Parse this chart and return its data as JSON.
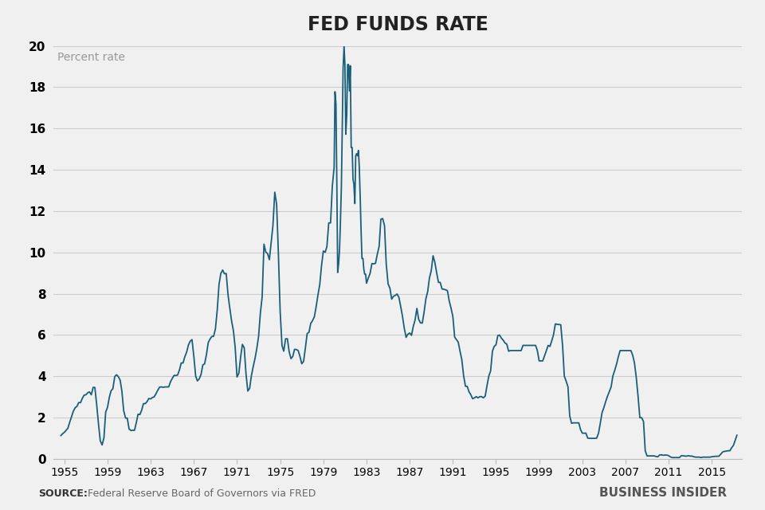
{
  "title": "FED FUNDS RATE",
  "ylabel": "Percent rate",
  "source_label": "SOURCE:",
  "source_text": "Federal Reserve Board of Governors via FRED",
  "watermark": "BUSINESS INSIDER",
  "line_color": "#1a5f7a",
  "background_color": "#f0f0f0",
  "plot_background": "#f0f0f0",
  "ylim": [
    0,
    20
  ],
  "yticks": [
    0,
    2,
    4,
    6,
    8,
    10,
    12,
    14,
    16,
    18,
    20
  ],
  "xlim": [
    1954.0,
    2017.8
  ],
  "xtick_labels": [
    "1955",
    "1959",
    "1963",
    "1967",
    "1971",
    "1975",
    "1979",
    "1983",
    "1987",
    "1991",
    "1995",
    "1999",
    "2003",
    "2007",
    "2011",
    "2015"
  ],
  "xtick_positions": [
    1955,
    1959,
    1963,
    1967,
    1971,
    1975,
    1979,
    1983,
    1987,
    1991,
    1995,
    1999,
    2003,
    2007,
    2011,
    2015
  ],
  "data": [
    [
      1954.67,
      1.13
    ],
    [
      1954.83,
      1.22
    ],
    [
      1955.0,
      1.29
    ],
    [
      1955.17,
      1.39
    ],
    [
      1955.33,
      1.49
    ],
    [
      1955.5,
      1.79
    ],
    [
      1955.67,
      2.05
    ],
    [
      1955.83,
      2.31
    ],
    [
      1956.0,
      2.48
    ],
    [
      1956.17,
      2.55
    ],
    [
      1956.33,
      2.73
    ],
    [
      1956.5,
      2.73
    ],
    [
      1956.67,
      2.94
    ],
    [
      1956.83,
      3.09
    ],
    [
      1957.0,
      3.11
    ],
    [
      1957.17,
      3.21
    ],
    [
      1957.33,
      3.25
    ],
    [
      1957.5,
      3.11
    ],
    [
      1957.67,
      3.47
    ],
    [
      1957.83,
      3.46
    ],
    [
      1958.0,
      2.61
    ],
    [
      1958.17,
      1.67
    ],
    [
      1958.33,
      0.88
    ],
    [
      1958.5,
      0.68
    ],
    [
      1958.67,
      1.03
    ],
    [
      1958.83,
      2.27
    ],
    [
      1959.0,
      2.5
    ],
    [
      1959.17,
      2.99
    ],
    [
      1959.33,
      3.3
    ],
    [
      1959.5,
      3.41
    ],
    [
      1959.67,
      3.99
    ],
    [
      1959.83,
      4.08
    ],
    [
      1960.0,
      3.99
    ],
    [
      1960.17,
      3.82
    ],
    [
      1960.33,
      3.29
    ],
    [
      1960.5,
      2.34
    ],
    [
      1960.67,
      1.98
    ],
    [
      1960.83,
      1.98
    ],
    [
      1961.0,
      1.45
    ],
    [
      1961.17,
      1.38
    ],
    [
      1961.33,
      1.39
    ],
    [
      1961.5,
      1.39
    ],
    [
      1961.67,
      1.76
    ],
    [
      1961.83,
      2.17
    ],
    [
      1962.0,
      2.15
    ],
    [
      1962.17,
      2.37
    ],
    [
      1962.33,
      2.68
    ],
    [
      1962.5,
      2.68
    ],
    [
      1962.67,
      2.78
    ],
    [
      1962.83,
      2.93
    ],
    [
      1963.0,
      2.91
    ],
    [
      1963.17,
      2.98
    ],
    [
      1963.33,
      3.01
    ],
    [
      1963.5,
      3.17
    ],
    [
      1963.67,
      3.34
    ],
    [
      1963.83,
      3.48
    ],
    [
      1964.0,
      3.49
    ],
    [
      1964.17,
      3.47
    ],
    [
      1964.33,
      3.49
    ],
    [
      1964.5,
      3.49
    ],
    [
      1964.67,
      3.49
    ],
    [
      1964.83,
      3.73
    ],
    [
      1965.0,
      3.9
    ],
    [
      1965.17,
      4.05
    ],
    [
      1965.33,
      4.04
    ],
    [
      1965.5,
      4.07
    ],
    [
      1965.67,
      4.32
    ],
    [
      1965.83,
      4.65
    ],
    [
      1966.0,
      4.65
    ],
    [
      1966.17,
      4.96
    ],
    [
      1966.33,
      5.17
    ],
    [
      1966.5,
      5.52
    ],
    [
      1966.67,
      5.71
    ],
    [
      1966.83,
      5.78
    ],
    [
      1967.0,
      4.97
    ],
    [
      1967.17,
      4.01
    ],
    [
      1967.33,
      3.78
    ],
    [
      1967.5,
      3.88
    ],
    [
      1967.67,
      4.1
    ],
    [
      1967.83,
      4.55
    ],
    [
      1968.0,
      4.61
    ],
    [
      1968.17,
      5.06
    ],
    [
      1968.33,
      5.63
    ],
    [
      1968.5,
      5.81
    ],
    [
      1968.67,
      5.93
    ],
    [
      1968.83,
      5.94
    ],
    [
      1969.0,
      6.3
    ],
    [
      1969.17,
      7.22
    ],
    [
      1969.33,
      8.44
    ],
    [
      1969.5,
      8.98
    ],
    [
      1969.67,
      9.15
    ],
    [
      1969.83,
      8.97
    ],
    [
      1970.0,
      8.98
    ],
    [
      1970.17,
      7.94
    ],
    [
      1970.33,
      7.31
    ],
    [
      1970.5,
      6.68
    ],
    [
      1970.67,
      6.2
    ],
    [
      1970.83,
      5.4
    ],
    [
      1971.0,
      3.97
    ],
    [
      1971.17,
      4.15
    ],
    [
      1971.33,
      4.91
    ],
    [
      1971.5,
      5.55
    ],
    [
      1971.67,
      5.38
    ],
    [
      1971.83,
      4.14
    ],
    [
      1972.0,
      3.29
    ],
    [
      1972.17,
      3.42
    ],
    [
      1972.33,
      4.02
    ],
    [
      1972.5,
      4.47
    ],
    [
      1972.67,
      4.87
    ],
    [
      1972.83,
      5.33
    ],
    [
      1973.0,
      5.94
    ],
    [
      1973.17,
      7.09
    ],
    [
      1973.33,
      7.84
    ],
    [
      1973.5,
      10.4
    ],
    [
      1973.67,
      10.01
    ],
    [
      1973.83,
      9.95
    ],
    [
      1974.0,
      9.65
    ],
    [
      1974.17,
      10.51
    ],
    [
      1974.33,
      11.31
    ],
    [
      1974.5,
      12.92
    ],
    [
      1974.67,
      12.34
    ],
    [
      1974.83,
      10.02
    ],
    [
      1975.0,
      7.13
    ],
    [
      1975.17,
      5.49
    ],
    [
      1975.33,
      5.22
    ],
    [
      1975.5,
      5.82
    ],
    [
      1975.67,
      5.82
    ],
    [
      1975.83,
      5.2
    ],
    [
      1976.0,
      4.86
    ],
    [
      1976.17,
      4.97
    ],
    [
      1976.33,
      5.31
    ],
    [
      1976.5,
      5.3
    ],
    [
      1976.67,
      5.25
    ],
    [
      1976.83,
      4.97
    ],
    [
      1977.0,
      4.61
    ],
    [
      1977.17,
      4.73
    ],
    [
      1977.33,
      5.35
    ],
    [
      1977.5,
      6.07
    ],
    [
      1977.67,
      6.14
    ],
    [
      1977.83,
      6.56
    ],
    [
      1978.0,
      6.7
    ],
    [
      1978.17,
      6.89
    ],
    [
      1978.33,
      7.36
    ],
    [
      1978.5,
      7.94
    ],
    [
      1978.67,
      8.45
    ],
    [
      1978.83,
      9.35
    ],
    [
      1979.0,
      10.07
    ],
    [
      1979.17,
      10.01
    ],
    [
      1979.33,
      10.28
    ],
    [
      1979.5,
      11.43
    ],
    [
      1979.67,
      11.43
    ],
    [
      1979.83,
      13.19
    ],
    [
      1980.0,
      14.13
    ],
    [
      1980.08,
      17.78
    ],
    [
      1980.17,
      17.19
    ],
    [
      1980.25,
      13.35
    ],
    [
      1980.33,
      9.03
    ],
    [
      1980.42,
      9.47
    ],
    [
      1980.5,
      10.14
    ],
    [
      1980.58,
      11.39
    ],
    [
      1980.67,
      13.15
    ],
    [
      1980.75,
      15.85
    ],
    [
      1980.83,
      18.9
    ],
    [
      1980.92,
      20.0
    ],
    [
      1981.0,
      19.08
    ],
    [
      1981.08,
      15.72
    ],
    [
      1981.17,
      16.68
    ],
    [
      1981.25,
      19.1
    ],
    [
      1981.33,
      19.1
    ],
    [
      1981.42,
      17.82
    ],
    [
      1981.5,
      19.04
    ],
    [
      1981.58,
      15.08
    ],
    [
      1981.67,
      15.08
    ],
    [
      1981.75,
      13.54
    ],
    [
      1981.83,
      13.31
    ],
    [
      1981.92,
      12.37
    ],
    [
      1982.0,
      14.68
    ],
    [
      1982.08,
      14.78
    ],
    [
      1982.17,
      14.68
    ],
    [
      1982.25,
      14.94
    ],
    [
      1982.33,
      14.15
    ],
    [
      1982.42,
      12.59
    ],
    [
      1982.5,
      11.01
    ],
    [
      1982.58,
      9.71
    ],
    [
      1982.67,
      9.71
    ],
    [
      1982.75,
      9.2
    ],
    [
      1982.83,
      8.95
    ],
    [
      1982.92,
      8.95
    ],
    [
      1983.0,
      8.51
    ],
    [
      1983.17,
      8.77
    ],
    [
      1983.33,
      8.98
    ],
    [
      1983.5,
      9.46
    ],
    [
      1983.67,
      9.45
    ],
    [
      1983.83,
      9.47
    ],
    [
      1984.0,
      9.91
    ],
    [
      1984.17,
      10.29
    ],
    [
      1984.33,
      11.61
    ],
    [
      1984.5,
      11.64
    ],
    [
      1984.67,
      11.29
    ],
    [
      1984.83,
      9.43
    ],
    [
      1985.0,
      8.48
    ],
    [
      1985.17,
      8.27
    ],
    [
      1985.33,
      7.74
    ],
    [
      1985.5,
      7.88
    ],
    [
      1985.67,
      7.92
    ],
    [
      1985.83,
      7.99
    ],
    [
      1986.0,
      7.83
    ],
    [
      1986.17,
      7.38
    ],
    [
      1986.33,
      6.92
    ],
    [
      1986.5,
      6.33
    ],
    [
      1986.67,
      5.89
    ],
    [
      1986.83,
      6.04
    ],
    [
      1987.0,
      6.1
    ],
    [
      1987.17,
      5.99
    ],
    [
      1987.33,
      6.41
    ],
    [
      1987.5,
      6.73
    ],
    [
      1987.67,
      7.29
    ],
    [
      1987.83,
      6.77
    ],
    [
      1988.0,
      6.59
    ],
    [
      1988.17,
      6.58
    ],
    [
      1988.33,
      7.09
    ],
    [
      1988.5,
      7.75
    ],
    [
      1988.67,
      8.11
    ],
    [
      1988.83,
      8.76
    ],
    [
      1989.0,
      9.12
    ],
    [
      1989.17,
      9.84
    ],
    [
      1989.33,
      9.53
    ],
    [
      1989.5,
      9.02
    ],
    [
      1989.67,
      8.55
    ],
    [
      1989.83,
      8.55
    ],
    [
      1990.0,
      8.23
    ],
    [
      1990.17,
      8.22
    ],
    [
      1990.33,
      8.19
    ],
    [
      1990.5,
      8.15
    ],
    [
      1990.67,
      7.64
    ],
    [
      1990.83,
      7.31
    ],
    [
      1991.0,
      6.91
    ],
    [
      1991.17,
      5.9
    ],
    [
      1991.33,
      5.78
    ],
    [
      1991.5,
      5.66
    ],
    [
      1991.67,
      5.21
    ],
    [
      1991.83,
      4.81
    ],
    [
      1992.0,
      4.03
    ],
    [
      1992.17,
      3.52
    ],
    [
      1992.33,
      3.52
    ],
    [
      1992.5,
      3.25
    ],
    [
      1992.67,
      3.11
    ],
    [
      1992.83,
      2.92
    ],
    [
      1993.0,
      2.96
    ],
    [
      1993.17,
      3.02
    ],
    [
      1993.33,
      2.96
    ],
    [
      1993.5,
      3.02
    ],
    [
      1993.67,
      3.02
    ],
    [
      1993.83,
      2.96
    ],
    [
      1994.0,
      3.05
    ],
    [
      1994.17,
      3.56
    ],
    [
      1994.33,
      4.01
    ],
    [
      1994.5,
      4.26
    ],
    [
      1994.67,
      5.22
    ],
    [
      1994.83,
      5.45
    ],
    [
      1995.0,
      5.53
    ],
    [
      1995.17,
      5.98
    ],
    [
      1995.33,
      6.0
    ],
    [
      1995.5,
      5.85
    ],
    [
      1995.67,
      5.75
    ],
    [
      1995.83,
      5.62
    ],
    [
      1996.0,
      5.56
    ],
    [
      1996.17,
      5.22
    ],
    [
      1996.33,
      5.25
    ],
    [
      1996.5,
      5.25
    ],
    [
      1996.67,
      5.25
    ],
    [
      1996.83,
      5.25
    ],
    [
      1997.0,
      5.25
    ],
    [
      1997.17,
      5.25
    ],
    [
      1997.33,
      5.25
    ],
    [
      1997.5,
      5.5
    ],
    [
      1997.67,
      5.5
    ],
    [
      1997.83,
      5.5
    ],
    [
      1998.0,
      5.5
    ],
    [
      1998.17,
      5.5
    ],
    [
      1998.33,
      5.5
    ],
    [
      1998.5,
      5.5
    ],
    [
      1998.67,
      5.5
    ],
    [
      1998.83,
      5.25
    ],
    [
      1999.0,
      4.75
    ],
    [
      1999.17,
      4.75
    ],
    [
      1999.33,
      4.75
    ],
    [
      1999.5,
      5.0
    ],
    [
      1999.67,
      5.25
    ],
    [
      1999.83,
      5.5
    ],
    [
      2000.0,
      5.45
    ],
    [
      2000.17,
      5.73
    ],
    [
      2000.33,
      6.02
    ],
    [
      2000.5,
      6.54
    ],
    [
      2000.67,
      6.52
    ],
    [
      2000.83,
      6.51
    ],
    [
      2001.0,
      6.5
    ],
    [
      2001.17,
      5.49
    ],
    [
      2001.33,
      4.01
    ],
    [
      2001.5,
      3.77
    ],
    [
      2001.67,
      3.49
    ],
    [
      2001.83,
      2.09
    ],
    [
      2002.0,
      1.73
    ],
    [
      2002.17,
      1.75
    ],
    [
      2002.33,
      1.75
    ],
    [
      2002.5,
      1.75
    ],
    [
      2002.67,
      1.75
    ],
    [
      2002.83,
      1.43
    ],
    [
      2003.0,
      1.25
    ],
    [
      2003.17,
      1.25
    ],
    [
      2003.33,
      1.25
    ],
    [
      2003.5,
      1.01
    ],
    [
      2003.67,
      1.0
    ],
    [
      2003.83,
      1.0
    ],
    [
      2004.0,
      1.0
    ],
    [
      2004.17,
      1.0
    ],
    [
      2004.33,
      1.01
    ],
    [
      2004.5,
      1.25
    ],
    [
      2004.67,
      1.75
    ],
    [
      2004.83,
      2.25
    ],
    [
      2005.0,
      2.5
    ],
    [
      2005.17,
      2.79
    ],
    [
      2005.33,
      3.04
    ],
    [
      2005.5,
      3.26
    ],
    [
      2005.67,
      3.5
    ],
    [
      2005.83,
      4.02
    ],
    [
      2006.0,
      4.29
    ],
    [
      2006.17,
      4.59
    ],
    [
      2006.33,
      4.94
    ],
    [
      2006.5,
      5.25
    ],
    [
      2006.67,
      5.25
    ],
    [
      2006.83,
      5.25
    ],
    [
      2007.0,
      5.25
    ],
    [
      2007.17,
      5.25
    ],
    [
      2007.33,
      5.25
    ],
    [
      2007.5,
      5.25
    ],
    [
      2007.67,
      5.02
    ],
    [
      2007.83,
      4.65
    ],
    [
      2008.0,
      3.94
    ],
    [
      2008.17,
      3.0
    ],
    [
      2008.33,
      2.0
    ],
    [
      2008.5,
      2.0
    ],
    [
      2008.67,
      1.81
    ],
    [
      2008.83,
      0.39
    ],
    [
      2009.0,
      0.15
    ],
    [
      2009.17,
      0.15
    ],
    [
      2009.33,
      0.15
    ],
    [
      2009.5,
      0.15
    ],
    [
      2009.67,
      0.15
    ],
    [
      2009.83,
      0.12
    ],
    [
      2010.0,
      0.11
    ],
    [
      2010.17,
      0.2
    ],
    [
      2010.33,
      0.2
    ],
    [
      2010.5,
      0.18
    ],
    [
      2010.67,
      0.19
    ],
    [
      2010.83,
      0.19
    ],
    [
      2011.0,
      0.16
    ],
    [
      2011.17,
      0.1
    ],
    [
      2011.33,
      0.07
    ],
    [
      2011.5,
      0.07
    ],
    [
      2011.67,
      0.07
    ],
    [
      2011.83,
      0.07
    ],
    [
      2012.0,
      0.07
    ],
    [
      2012.17,
      0.16
    ],
    [
      2012.33,
      0.16
    ],
    [
      2012.5,
      0.14
    ],
    [
      2012.67,
      0.14
    ],
    [
      2012.83,
      0.16
    ],
    [
      2013.0,
      0.14
    ],
    [
      2013.17,
      0.14
    ],
    [
      2013.33,
      0.11
    ],
    [
      2013.5,
      0.09
    ],
    [
      2013.67,
      0.09
    ],
    [
      2013.83,
      0.09
    ],
    [
      2014.0,
      0.07
    ],
    [
      2014.17,
      0.09
    ],
    [
      2014.33,
      0.09
    ],
    [
      2014.5,
      0.09
    ],
    [
      2014.67,
      0.09
    ],
    [
      2014.83,
      0.09
    ],
    [
      2015.0,
      0.11
    ],
    [
      2015.17,
      0.12
    ],
    [
      2015.33,
      0.13
    ],
    [
      2015.5,
      0.13
    ],
    [
      2015.67,
      0.14
    ],
    [
      2015.83,
      0.24
    ],
    [
      2016.0,
      0.34
    ],
    [
      2016.17,
      0.37
    ],
    [
      2016.33,
      0.38
    ],
    [
      2016.5,
      0.4
    ],
    [
      2016.67,
      0.4
    ],
    [
      2016.83,
      0.54
    ],
    [
      2017.0,
      0.66
    ],
    [
      2017.17,
      0.91
    ],
    [
      2017.33,
      1.16
    ]
  ]
}
